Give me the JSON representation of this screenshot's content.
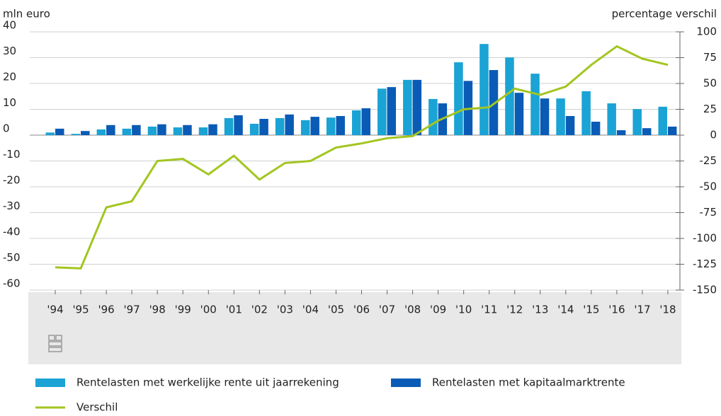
{
  "chart_data": {
    "type": "bar",
    "y_label": "mln euro",
    "y2_label": "percentage verschil",
    "categories": [
      "'94",
      "'95",
      "'96",
      "'97",
      "'98",
      "'99",
      "'00",
      "'01",
      "'02",
      "'03",
      "'04",
      "'05",
      "'06",
      "'07",
      "'08",
      "'09",
      "'10",
      "'11",
      "'12",
      "'13",
      "'14",
      "'15",
      "'16",
      "'17",
      "'18"
    ],
    "ylim": [
      -60,
      40
    ],
    "yticks": [
      -60,
      -50,
      -40,
      -30,
      -20,
      -10,
      0,
      10,
      20,
      30,
      40
    ],
    "y2lim": [
      -150,
      100
    ],
    "y2ticks": [
      -150,
      -125,
      -100,
      -75,
      -50,
      -25,
      0,
      25,
      50,
      75,
      100
    ],
    "grid": true,
    "series": [
      {
        "name": "Rentelasten met werkelijke rente uit jaarrekening",
        "type": "bar",
        "color": "#1aa3d4",
        "values": [
          1,
          0.5,
          2.2,
          2.5,
          3.3,
          3,
          3,
          6.6,
          4.4,
          6.6,
          5.8,
          6.8,
          9.6,
          18,
          21.4,
          14,
          28.2,
          35.3,
          30.1,
          23.8,
          14.2,
          17,
          12.3,
          10.1,
          11
        ]
      },
      {
        "name": "Rentelasten met kapitaalmarktrente",
        "type": "bar",
        "color": "#0a5bb5",
        "values": [
          2.5,
          1.6,
          3.9,
          3.9,
          4.2,
          3.9,
          4.2,
          7.7,
          6.3,
          8,
          7.1,
          7.4,
          10.4,
          18.6,
          21.4,
          12.3,
          21,
          25.2,
          16.4,
          14.2,
          7.4,
          5.2,
          1.9,
          2.7,
          3.3
        ]
      },
      {
        "name": "Verschil",
        "type": "line",
        "axis": "y2",
        "color": "#a3c520",
        "values": [
          -128,
          -129,
          -70,
          -64,
          -25,
          -23,
          -38,
          -20,
          -43,
          -27,
          -25,
          -12,
          -8,
          -3,
          -1,
          14,
          25,
          27,
          45,
          39,
          47,
          68,
          86,
          74,
          68
        ]
      }
    ]
  }
}
